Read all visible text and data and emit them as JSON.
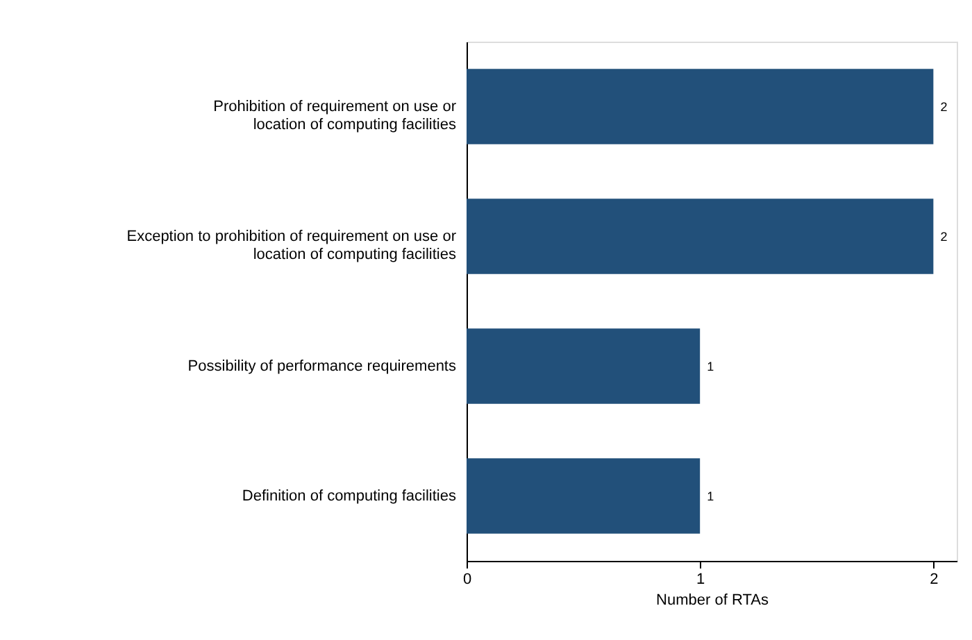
{
  "chart_data": {
    "type": "bar",
    "orientation": "horizontal",
    "xlabel": "Number of RTAs",
    "categories": [
      "Prohibition of requirement on use or\nlocation of computing facilities",
      "Exception to prohibition of requirement on use or\nlocation of computing facilities",
      "Possibility of performance requirements",
      "Definition of computing facilities"
    ],
    "values": [
      2,
      2,
      1,
      1
    ],
    "color": "#22507a",
    "xlim": [
      0,
      2.1
    ],
    "xticks": [
      0,
      1,
      2
    ],
    "data_labels": true,
    "grid": false
  }
}
